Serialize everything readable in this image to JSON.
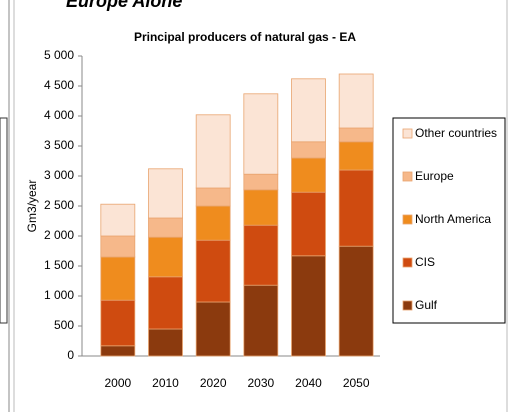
{
  "slide_heading": "Europe Alone",
  "chart_data": {
    "type": "stacked_bar",
    "title": "Principal producers of natural gas - EA",
    "y_label": "Gm3/year",
    "categories": [
      "2000",
      "2010",
      "2020",
      "2030",
      "2040",
      "2050"
    ],
    "series": [
      {
        "name": "Gulf",
        "color": "#8b3a0e",
        "values": [
          170,
          450,
          900,
          1180,
          1670,
          1830
        ]
      },
      {
        "name": "CIS",
        "color": "#cf4b10",
        "values": [
          760,
          870,
          1030,
          1000,
          1060,
          1270
        ]
      },
      {
        "name": "North America",
        "color": "#ef8c1e",
        "values": [
          720,
          660,
          570,
          590,
          570,
          470
        ]
      },
      {
        "name": "Europe",
        "color": "#f6b88a",
        "values": [
          350,
          320,
          300,
          260,
          270,
          230
        ]
      },
      {
        "name": "Other countries",
        "color": "#fbe4d5",
        "values": [
          530,
          820,
          1220,
          1340,
          1050,
          900
        ]
      }
    ],
    "ylim": [
      0,
      5000
    ],
    "yticks": [
      0,
      500,
      {
        "value": 1000,
        "label": "1 000"
      },
      {
        "value": 1500,
        "label": "1 500"
      },
      {
        "value": 2000,
        "label": "2 000"
      },
      {
        "value": 2500,
        "label": "2 500"
      },
      {
        "value": 3000,
        "label": "3 000"
      },
      {
        "value": 3500,
        "label": "3 500"
      },
      {
        "value": 4000,
        "label": "4 000"
      },
      {
        "value": 4500,
        "label": "4 500"
      },
      {
        "value": 5000,
        "label": "5 000"
      }
    ],
    "legend_position": "right"
  }
}
